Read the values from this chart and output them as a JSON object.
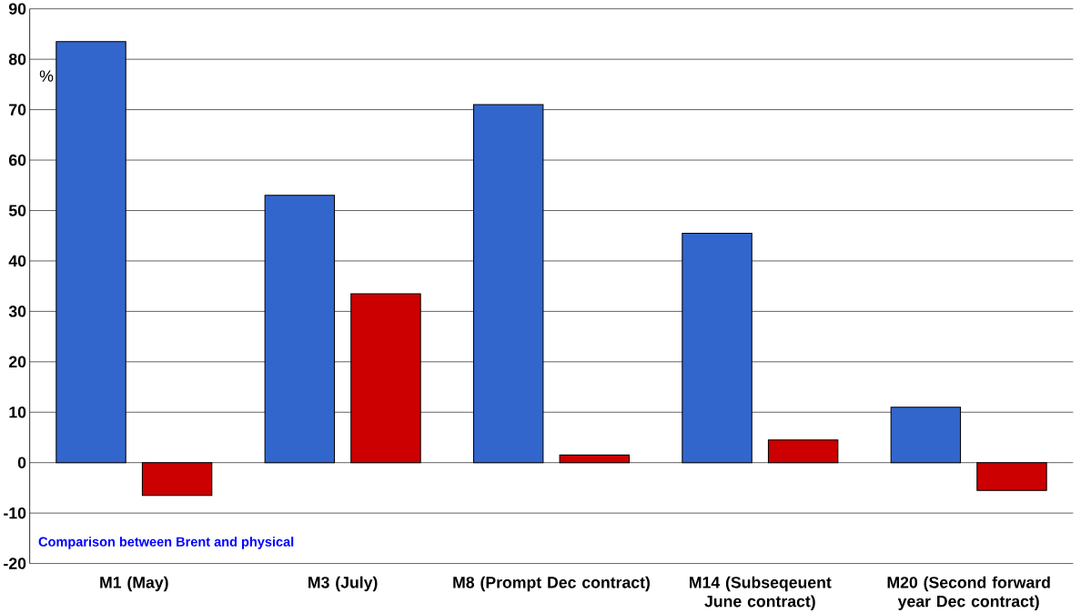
{
  "chart_data": {
    "type": "bar",
    "ylabel": "%",
    "categories": [
      "M1 (May)",
      "M3 (July)",
      "M8 (Prompt Dec contract)",
      "M14 (Subseqeuent June contract)",
      "M20 (Second forward year Dec contract)"
    ],
    "series": [
      {
        "color": "#3366cc",
        "values": [
          83.5,
          53,
          71,
          45.5,
          11
        ]
      },
      {
        "color": "#cc0000",
        "values": [
          -6.5,
          33.5,
          1.5,
          4.5,
          -5.5
        ]
      }
    ],
    "ylim": [
      -20,
      90
    ],
    "yticks": [
      -20,
      -10,
      0,
      10,
      20,
      30,
      40,
      50,
      60,
      70,
      80,
      90
    ],
    "grid": "y",
    "annotations": [
      "Comparison between Brent and physical"
    ]
  }
}
